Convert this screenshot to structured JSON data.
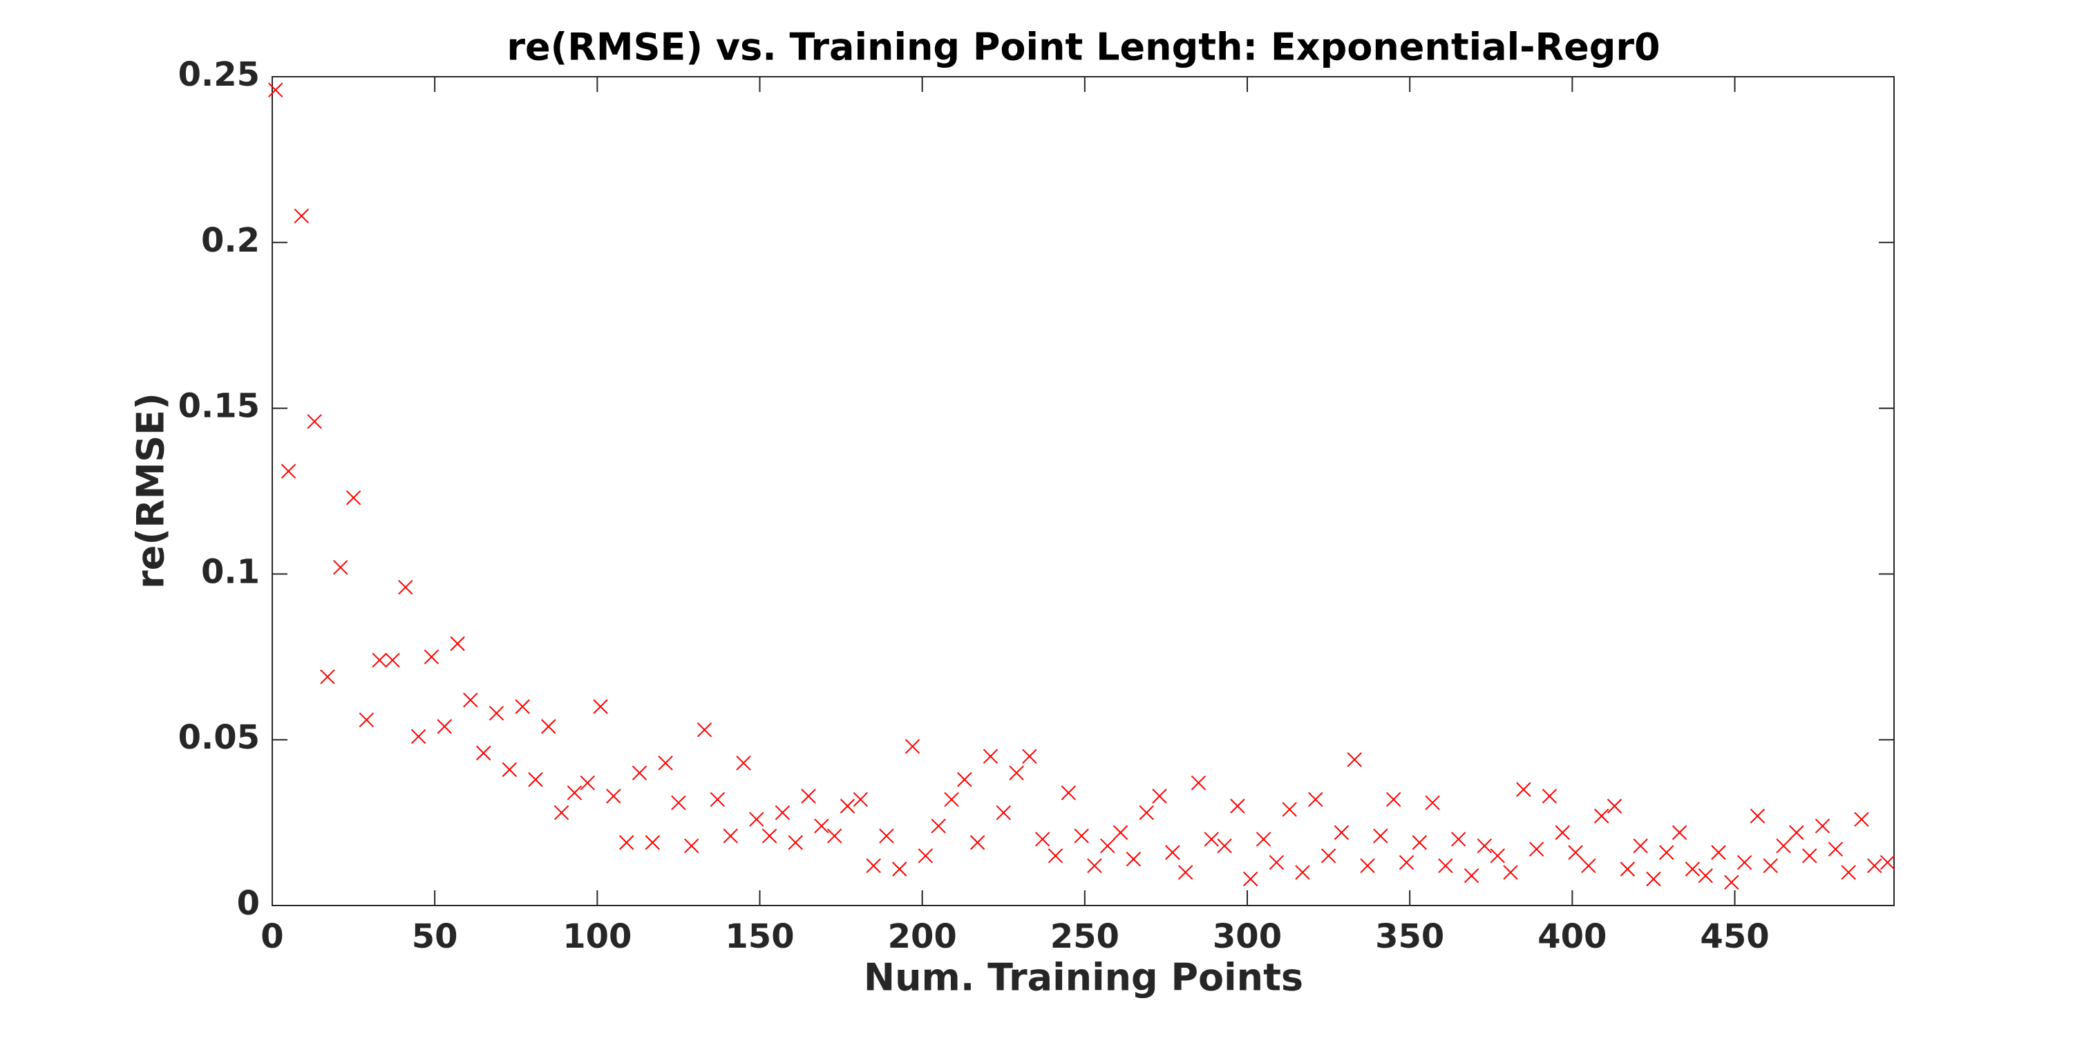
{
  "chart_data": {
    "type": "scatter",
    "title": "re(RMSE) vs. Training Point Length: Exponential-Regr0",
    "x_label": "Num. Training Points",
    "y_label": "re(RMSE)",
    "marker": "x",
    "color": "#ff0000",
    "xlim": [
      0,
      499
    ],
    "ylim": [
      0,
      0.25
    ],
    "xticks": [
      0,
      50,
      100,
      150,
      200,
      250,
      300,
      350,
      400,
      450
    ],
    "yticks": [
      0,
      0.05,
      0.1,
      0.15,
      0.2,
      0.25
    ],
    "grid": false,
    "x": [
      1,
      5,
      9,
      13,
      17,
      21,
      25,
      29,
      33,
      37,
      41,
      45,
      49,
      53,
      57,
      61,
      65,
      69,
      73,
      77,
      81,
      85,
      89,
      93,
      97,
      101,
      105,
      109,
      113,
      117,
      121,
      125,
      129,
      133,
      137,
      141,
      145,
      149,
      153,
      157,
      161,
      165,
      169,
      173,
      177,
      181,
      185,
      189,
      193,
      197,
      201,
      205,
      209,
      213,
      217,
      221,
      225,
      229,
      233,
      237,
      241,
      245,
      249,
      253,
      257,
      261,
      265,
      269,
      273,
      277,
      281,
      285,
      289,
      293,
      297,
      301,
      305,
      309,
      313,
      317,
      321,
      325,
      329,
      333,
      337,
      341,
      345,
      349,
      353,
      357,
      361,
      365,
      369,
      373,
      377,
      381,
      385,
      389,
      393,
      397,
      401,
      405,
      409,
      413,
      417,
      421,
      425,
      429,
      433,
      437,
      441,
      445,
      449,
      453,
      457,
      461,
      465,
      469,
      473,
      477,
      481,
      485,
      489,
      493,
      497
    ],
    "values": [
      0.246,
      0.131,
      0.208,
      0.146,
      0.069,
      0.102,
      0.123,
      0.056,
      0.074,
      0.074,
      0.096,
      0.051,
      0.075,
      0.054,
      0.079,
      0.062,
      0.046,
      0.058,
      0.041,
      0.06,
      0.038,
      0.054,
      0.028,
      0.034,
      0.037,
      0.06,
      0.033,
      0.019,
      0.04,
      0.019,
      0.043,
      0.031,
      0.018,
      0.053,
      0.032,
      0.021,
      0.043,
      0.026,
      0.021,
      0.028,
      0.019,
      0.033,
      0.024,
      0.021,
      0.03,
      0.032,
      0.012,
      0.021,
      0.011,
      0.048,
      0.015,
      0.024,
      0.032,
      0.038,
      0.019,
      0.045,
      0.028,
      0.04,
      0.045,
      0.02,
      0.015,
      0.034,
      0.021,
      0.012,
      0.018,
      0.022,
      0.014,
      0.028,
      0.033,
      0.016,
      0.01,
      0.037,
      0.02,
      0.018,
      0.03,
      0.008,
      0.02,
      0.013,
      0.029,
      0.01,
      0.032,
      0.015,
      0.022,
      0.044,
      0.012,
      0.021,
      0.032,
      0.013,
      0.019,
      0.031,
      0.012,
      0.02,
      0.009,
      0.018,
      0.015,
      0.01,
      0.035,
      0.017,
      0.033,
      0.022,
      0.016,
      0.012,
      0.027,
      0.03,
      0.011,
      0.018,
      0.008,
      0.016,
      0.022,
      0.011,
      0.009,
      0.016,
      0.007,
      0.013,
      0.027,
      0.012,
      0.018,
      0.022,
      0.015,
      0.024,
      0.017,
      0.01,
      0.026,
      0.012,
      0.013
    ]
  }
}
